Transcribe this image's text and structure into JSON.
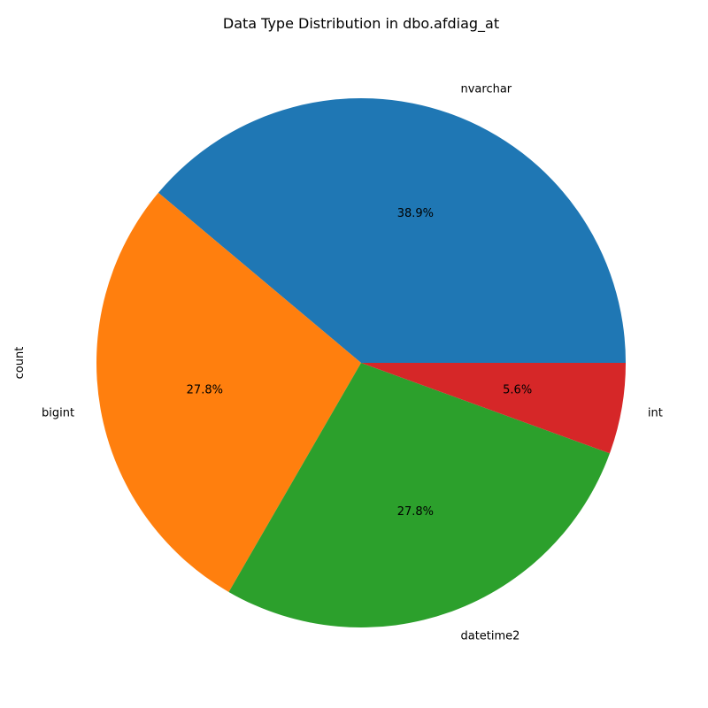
{
  "chart_data": {
    "type": "pie",
    "title": "Data Type Distribution in dbo.afdiag_at",
    "ylabel": "count",
    "categories": [
      "nvarchar",
      "bigint",
      "datetime2",
      "int"
    ],
    "values": [
      7,
      5,
      5,
      1
    ],
    "percent_labels": [
      "38.9%",
      "27.8%",
      "27.8%",
      "5.6%"
    ],
    "colors": [
      "#1f77b4",
      "#ff7f0e",
      "#2ca02c",
      "#d62728"
    ],
    "start_angle": 0,
    "direction": "counterclockwise"
  }
}
